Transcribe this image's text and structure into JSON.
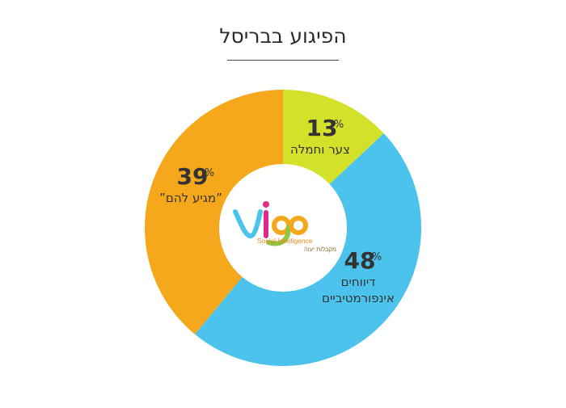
{
  "chart_data": {
    "type": "pie",
    "title": "הפיגוע בבריסל",
    "categories": [
      "צער וחמלה",
      "דיווחים אינפורמטיביים",
      "”מגיע להם”"
    ],
    "category_lines": [
      [
        "צער וחמלה"
      ],
      [
        "דיווחים",
        "אינפורמטיביים"
      ],
      [
        "”מגיע להם”"
      ]
    ],
    "values": [
      13,
      48,
      39
    ],
    "value_suffix": "%",
    "colors": [
      "#d4e12b",
      "#4cc3ec",
      "#f5a81c"
    ],
    "donut": true
  },
  "logo": {
    "brand": "ViGO",
    "tagline": "Social Intelligence",
    "subtitle": "מקבלות יעוה"
  }
}
